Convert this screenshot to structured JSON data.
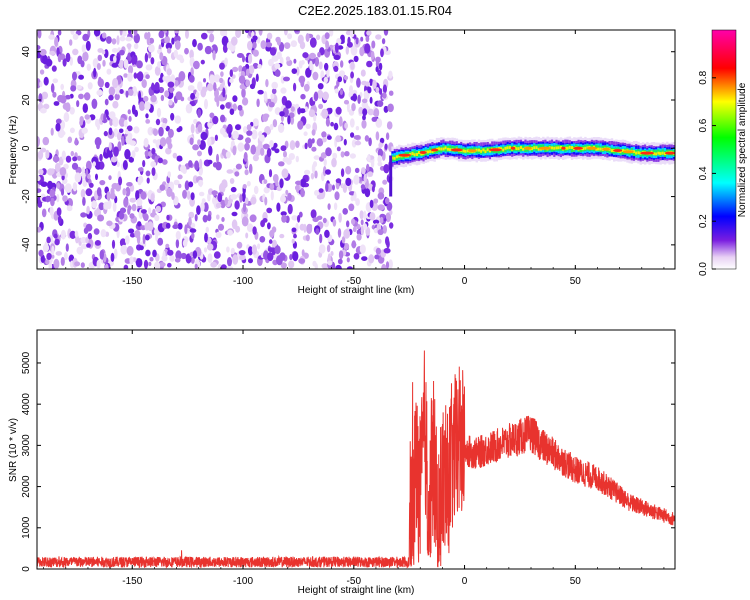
{
  "title": "C2E2.2025.183.01.15.R04",
  "chart_data": [
    {
      "type": "heatmap",
      "xlabel": "Height of straight line (km)",
      "ylabel": "Frequency (Hz)",
      "xlim": [
        -193,
        95
      ],
      "ylim": [
        -50,
        49
      ],
      "xticks": [
        -150,
        -100,
        -50,
        0,
        50
      ],
      "yticks": [
        -40,
        -20,
        0,
        20,
        40
      ],
      "noise_region": [
        -193,
        -33
      ],
      "signal_band": {
        "x_start": -33,
        "center_frequency": [
          [
            -33,
            -4
          ],
          [
            -28,
            -3
          ],
          [
            -20,
            -2
          ],
          [
            -10,
            0
          ],
          [
            0,
            -1
          ],
          [
            10,
            -1
          ],
          [
            20,
            0
          ],
          [
            30,
            0
          ],
          [
            40,
            0
          ],
          [
            50,
            0
          ],
          [
            60,
            0
          ],
          [
            70,
            -1
          ],
          [
            80,
            -2
          ],
          [
            95,
            -2
          ]
        ]
      },
      "colorbar": {
        "label": "Normalized spectral amplitude",
        "range": [
          0,
          1
        ],
        "ticks": [
          0.0,
          0.2,
          0.4,
          0.6,
          0.8
        ]
      }
    },
    {
      "type": "line",
      "xlabel": "Height of straight line (km)",
      "ylabel": "SNR (10 * v/v)",
      "xlim": [
        -193,
        95
      ],
      "ylim": [
        0,
        5800
      ],
      "xticks": [
        -150,
        -100,
        -50,
        0,
        50
      ],
      "yticks": [
        0,
        1000,
        2000,
        3000,
        4000,
        5000
      ],
      "color": "#e8332e",
      "series": [
        {
          "x": [
            -193,
            -150,
            -100,
            -50,
            -30,
            -25,
            -22,
            -20,
            -18,
            -16,
            -14,
            -12,
            -10,
            -8,
            -6,
            -4,
            -2,
            0,
            5,
            10,
            15,
            20,
            25,
            30,
            35,
            40,
            45,
            50,
            55,
            60,
            65,
            70,
            75,
            80,
            85,
            90,
            95
          ],
          "y": [
            200,
            200,
            200,
            200,
            200,
            250,
            2500,
            1800,
            3600,
            1200,
            2800,
            900,
            2200,
            1800,
            2600,
            2900,
            3100,
            2900,
            2800,
            2900,
            3000,
            3100,
            3200,
            3300,
            3000,
            2800,
            2600,
            2400,
            2300,
            2200,
            2000,
            1800,
            1600,
            1500,
            1400,
            1300,
            1200
          ]
        }
      ]
    }
  ]
}
